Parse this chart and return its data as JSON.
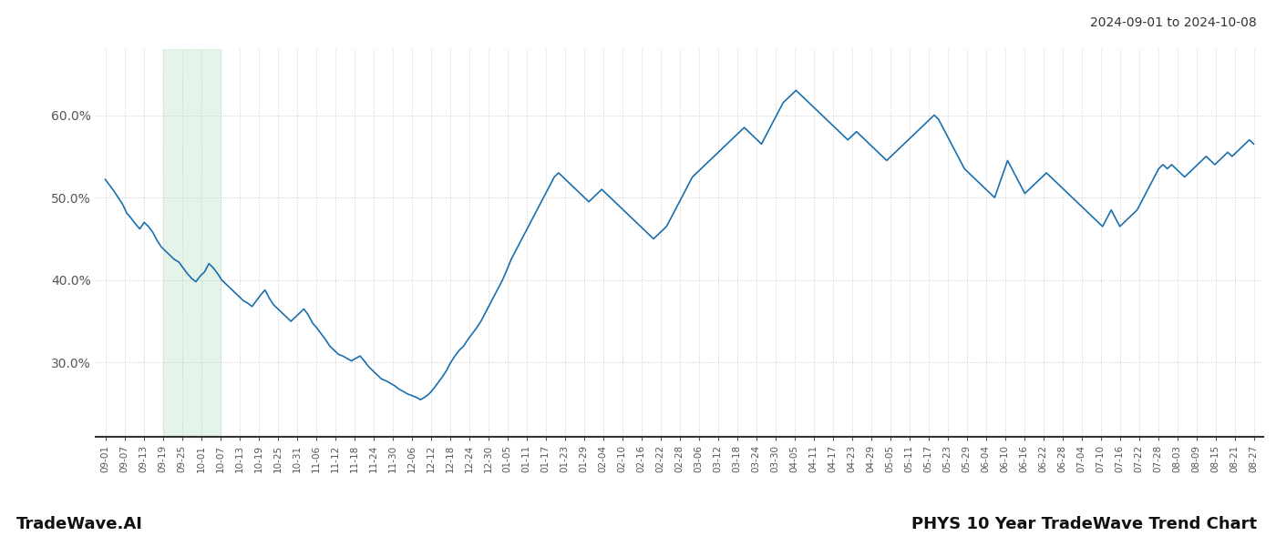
{
  "title_top_right": "2024-09-01 to 2024-10-08",
  "title_bottom_left": "TradeWave.AI",
  "title_bottom_right": "PHYS 10 Year TradeWave Trend Chart",
  "line_color": "#1a6faf",
  "line_width": 1.2,
  "shade_color": "#d4edda",
  "shade_alpha": 0.6,
  "background_color": "#ffffff",
  "grid_color": "#cccccc",
  "grid_style": ":",
  "ylim": [
    21,
    68
  ],
  "yticks": [
    30.0,
    40.0,
    50.0,
    60.0
  ],
  "shade_start_label": "09-19",
  "shade_end_label": "10-07",
  "x_labels": [
    "09-01",
    "09-07",
    "09-13",
    "09-19",
    "09-25",
    "10-01",
    "10-07",
    "10-13",
    "10-19",
    "10-25",
    "10-31",
    "11-06",
    "11-12",
    "11-18",
    "11-24",
    "11-30",
    "12-06",
    "12-12",
    "12-18",
    "12-24",
    "12-30",
    "01-05",
    "01-11",
    "01-17",
    "01-23",
    "01-29",
    "02-04",
    "02-10",
    "02-16",
    "02-22",
    "02-28",
    "03-06",
    "03-12",
    "03-18",
    "03-24",
    "03-30",
    "04-05",
    "04-11",
    "04-17",
    "04-23",
    "04-29",
    "05-05",
    "05-11",
    "05-17",
    "05-23",
    "05-29",
    "06-04",
    "06-10",
    "06-16",
    "06-22",
    "06-28",
    "07-04",
    "07-10",
    "07-16",
    "07-22",
    "07-28",
    "08-03",
    "08-09",
    "08-15",
    "08-21",
    "08-27"
  ],
  "y_values": [
    52.2,
    51.5,
    50.8,
    50.0,
    49.2,
    48.1,
    47.5,
    46.8,
    46.2,
    47.0,
    46.5,
    45.8,
    44.8,
    44.0,
    43.5,
    43.0,
    42.5,
    42.2,
    41.5,
    40.8,
    40.2,
    39.8,
    40.5,
    41.0,
    42.0,
    41.5,
    40.8,
    40.0,
    39.5,
    39.0,
    38.5,
    38.0,
    37.5,
    37.2,
    36.8,
    37.5,
    38.2,
    38.8,
    37.8,
    37.0,
    36.5,
    36.0,
    35.5,
    35.0,
    35.5,
    36.0,
    36.5,
    35.8,
    34.8,
    34.2,
    33.5,
    32.8,
    32.0,
    31.5,
    31.0,
    30.8,
    30.5,
    30.2,
    30.5,
    30.8,
    30.2,
    29.5,
    29.0,
    28.5,
    28.0,
    27.8,
    27.5,
    27.2,
    26.8,
    26.5,
    26.2,
    26.0,
    25.8,
    25.5,
    25.8,
    26.2,
    26.8,
    27.5,
    28.2,
    29.0,
    30.0,
    30.8,
    31.5,
    32.0,
    32.8,
    33.5,
    34.2,
    35.0,
    36.0,
    37.0,
    38.0,
    39.0,
    40.0,
    41.2,
    42.5,
    43.5,
    44.5,
    45.5,
    46.5,
    47.5,
    48.5,
    49.5,
    50.5,
    51.5,
    52.5,
    53.0,
    52.5,
    52.0,
    51.5,
    51.0,
    50.5,
    50.0,
    49.5,
    50.0,
    50.5,
    51.0,
    50.5,
    50.0,
    49.5,
    49.0,
    48.5,
    48.0,
    47.5,
    47.0,
    46.5,
    46.0,
    45.5,
    45.0,
    45.5,
    46.0,
    46.5,
    47.5,
    48.5,
    49.5,
    50.5,
    51.5,
    52.5,
    53.0,
    53.5,
    54.0,
    54.5,
    55.0,
    55.5,
    56.0,
    56.5,
    57.0,
    57.5,
    58.0,
    58.5,
    58.0,
    57.5,
    57.0,
    56.5,
    57.5,
    58.5,
    59.5,
    60.5,
    61.5,
    62.0,
    62.5,
    63.0,
    62.5,
    62.0,
    61.5,
    61.0,
    60.5,
    60.0,
    59.5,
    59.0,
    58.5,
    58.0,
    57.5,
    57.0,
    57.5,
    58.0,
    57.5,
    57.0,
    56.5,
    56.0,
    55.5,
    55.0,
    54.5,
    55.0,
    55.5,
    56.0,
    56.5,
    57.0,
    57.5,
    58.0,
    58.5,
    59.0,
    59.5,
    60.0,
    59.5,
    58.5,
    57.5,
    56.5,
    55.5,
    54.5,
    53.5,
    53.0,
    52.5,
    52.0,
    51.5,
    51.0,
    50.5,
    50.0,
    51.5,
    53.0,
    54.5,
    53.5,
    52.5,
    51.5,
    50.5,
    51.0,
    51.5,
    52.0,
    52.5,
    53.0,
    52.5,
    52.0,
    51.5,
    51.0,
    50.5,
    50.0,
    49.5,
    49.0,
    48.5,
    48.0,
    47.5,
    47.0,
    46.5,
    47.5,
    48.5,
    47.5,
    46.5,
    47.0,
    47.5,
    48.0,
    48.5,
    49.5,
    50.5,
    51.5,
    52.5,
    53.5,
    54.0,
    53.5,
    54.0,
    53.5,
    53.0,
    52.5,
    53.0,
    53.5,
    54.0,
    54.5,
    55.0,
    54.5,
    54.0,
    54.5,
    55.0,
    55.5,
    55.0,
    55.5,
    56.0,
    56.5,
    57.0,
    56.5
  ]
}
